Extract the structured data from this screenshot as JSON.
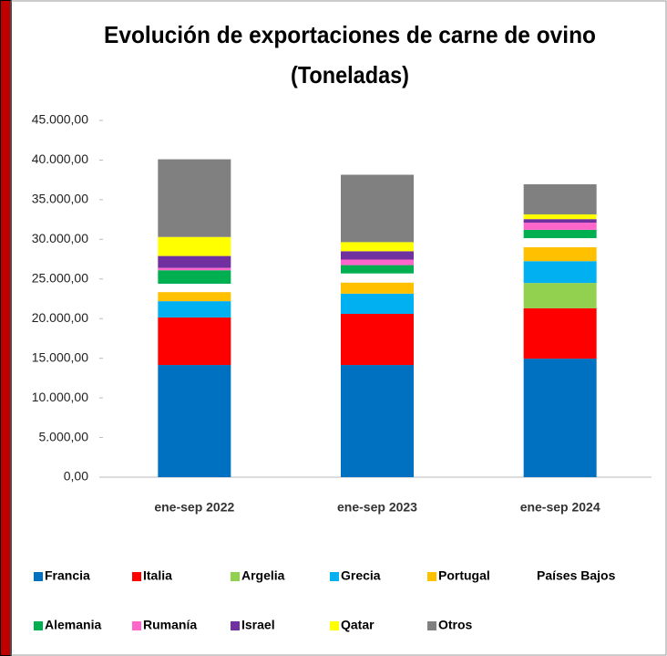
{
  "chart_data": {
    "type": "stacked-bar",
    "title": [
      "Evolución de exportaciones de carne de ovino",
      "(Toneladas)"
    ],
    "categories": [
      "ene-sep 2022",
      "ene-sep 2023",
      "ene-sep 2024"
    ],
    "series": [
      {
        "name": "Francia",
        "color": "#0070c0",
        "values": [
          14150,
          14150,
          14950
        ]
      },
      {
        "name": "Italia",
        "color": "#ff0000",
        "values": [
          6000,
          6450,
          6350
        ]
      },
      {
        "name": "Argelia",
        "color": "#92d050",
        "values": [
          0,
          0,
          3200
        ]
      },
      {
        "name": "Grecia",
        "color": "#00b0f0",
        "values": [
          2050,
          2550,
          2750
        ]
      },
      {
        "name": "Portugal",
        "color": "#ffc000",
        "values": [
          1150,
          1400,
          1750
        ]
      },
      {
        "name": "Países Bajos",
        "color": "#ffffff",
        "values": [
          1050,
          1150,
          1150
        ]
      },
      {
        "name": "Alemania",
        "color": "#00b050",
        "values": [
          1700,
          1050,
          1050
        ]
      },
      {
        "name": "Rumanía",
        "color": "#ff66cc",
        "values": [
          300,
          700,
          900
        ]
      },
      {
        "name": "Israel",
        "color": "#7030a0",
        "values": [
          1500,
          1050,
          450
        ]
      },
      {
        "name": "Qatar",
        "color": "#ffff00",
        "values": [
          2400,
          1150,
          600
        ]
      },
      {
        "name": "Otros",
        "color": "#808080",
        "values": [
          9800,
          8500,
          3800
        ]
      }
    ],
    "ylim": [
      0,
      45000
    ],
    "yticks": [
      {
        "value": 0,
        "label": "0,00"
      },
      {
        "value": 5000,
        "label": "5.000,00"
      },
      {
        "value": 10000,
        "label": "10.000,00"
      },
      {
        "value": 15000,
        "label": "15.000,00"
      },
      {
        "value": 20000,
        "label": "20.000,00"
      },
      {
        "value": 25000,
        "label": "25.000,00"
      },
      {
        "value": 30000,
        "label": "30.000,00"
      },
      {
        "value": 35000,
        "label": "35.000,00"
      },
      {
        "value": 40000,
        "label": "40.000,00"
      },
      {
        "value": 45000,
        "label": "45.000,00"
      }
    ],
    "grid": false
  }
}
